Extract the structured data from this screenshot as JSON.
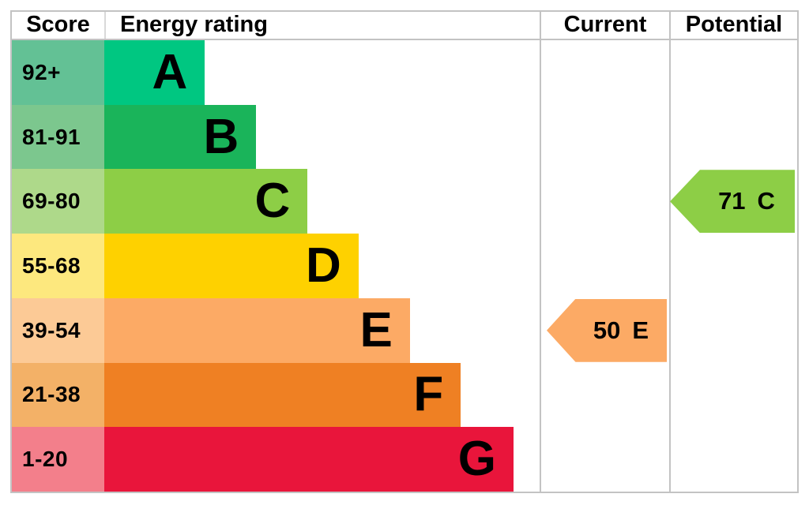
{
  "chart_data": {
    "type": "bar",
    "headers": {
      "score": "Score",
      "rating": "Energy rating",
      "current": "Current",
      "potential": "Potential"
    },
    "bands": [
      {
        "letter": "A",
        "score": "92+",
        "bar_color": "#00c781",
        "tint_color": "#63c195",
        "width_pct": 23.1
      },
      {
        "letter": "B",
        "score": "81-91",
        "bar_color": "#1ab45a",
        "tint_color": "#7cc78e",
        "width_pct": 34.9
      },
      {
        "letter": "C",
        "score": "69-80",
        "bar_color": "#8dce46",
        "tint_color": "#aed98a",
        "width_pct": 46.7
      },
      {
        "letter": "D",
        "score": "55-68",
        "bar_color": "#fed100",
        "tint_color": "#fde87e",
        "width_pct": 58.4
      },
      {
        "letter": "E",
        "score": "39-54",
        "bar_color": "#fcaa65",
        "tint_color": "#fcca96",
        "width_pct": 70.2
      },
      {
        "letter": "F",
        "score": "21-38",
        "bar_color": "#ef8023",
        "tint_color": "#f3b167",
        "width_pct": 81.9
      },
      {
        "letter": "G",
        "score": "1-20",
        "bar_color": "#e9153b",
        "tint_color": "#f37f8b",
        "width_pct": 94.0
      }
    ],
    "current": {
      "value": "50",
      "band": "E",
      "row_index": 4,
      "color": "#fcaa65"
    },
    "potential": {
      "value": "71",
      "band": "C",
      "row_index": 2,
      "color": "#8dce46"
    },
    "layout": {
      "grid": "off",
      "legend": "none",
      "border_color": "#c3c3c3"
    }
  }
}
